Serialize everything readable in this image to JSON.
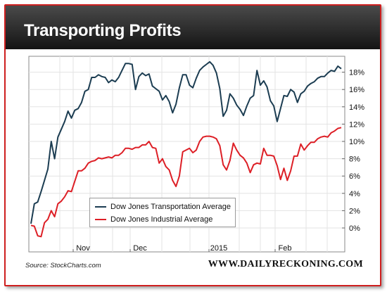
{
  "title": "Transporting Profits",
  "source": "Source: StockCharts.com",
  "site": "WWW.DAILYRECKONING.COM",
  "colors": {
    "transport": "#1c3d52",
    "industrial": "#dd1f26",
    "frame": "#cf1f1f"
  },
  "chart_data": {
    "type": "line",
    "title": "Transporting Profits",
    "xlabel": "",
    "ylabel": "",
    "x_ticks": [
      "Nov",
      "Dec",
      "2015",
      "Feb"
    ],
    "y_ticks": [
      "0%",
      "2%",
      "4%",
      "6%",
      "8%",
      "10%",
      "12%",
      "14%",
      "16%",
      "18%"
    ],
    "ylim": [
      -1.8,
      19.8
    ],
    "grid": true,
    "legend_position": "bottom-left",
    "series": [
      {
        "name": "Dow Jones Transportation Average",
        "color": "#1c3d52",
        "values": [
          0.5,
          2.8,
          3.0,
          4.2,
          5.5,
          6.8,
          10.0,
          8.0,
          10.5,
          11.4,
          12.3,
          13.5,
          12.7,
          13.6,
          13.8,
          14.5,
          15.8,
          16.0,
          17.4,
          17.4,
          17.7,
          17.5,
          17.4,
          16.8,
          17.1,
          16.9,
          17.4,
          18.2,
          19.0,
          19.0,
          18.9,
          16.0,
          17.5,
          17.9,
          17.6,
          17.8,
          16.4,
          16.1,
          15.8,
          14.8,
          15.3,
          14.6,
          13.3,
          14.3,
          16.2,
          17.7,
          17.7,
          16.5,
          16.2,
          17.3,
          18.2,
          18.6,
          18.9,
          19.2,
          18.8,
          17.9,
          16.1,
          12.9,
          13.6,
          15.5,
          15.0,
          14.2,
          13.7,
          13.0,
          14.1,
          15.0,
          15.3,
          18.2,
          16.5,
          17.0,
          16.3,
          14.7,
          14.1,
          12.3,
          13.8,
          15.3,
          15.2,
          16.0,
          15.7,
          14.5,
          15.5,
          15.8,
          16.4,
          16.7,
          16.9,
          17.3,
          17.5,
          17.5,
          17.9,
          18.2,
          18.1,
          18.7,
          18.4
        ]
      },
      {
        "name": "Dow Jones Industrial Average",
        "color": "#dd1f26",
        "values": [
          0.3,
          0.2,
          -0.9,
          -1.0,
          0.6,
          1.0,
          2.0,
          1.3,
          2.8,
          3.1,
          3.6,
          4.3,
          4.2,
          5.4,
          6.6,
          6.6,
          6.9,
          7.5,
          7.7,
          7.8,
          8.1,
          8.0,
          8.1,
          8.2,
          8.1,
          8.4,
          8.4,
          8.7,
          9.2,
          9.2,
          9.1,
          9.3,
          9.3,
          9.6,
          9.6,
          10.0,
          9.3,
          9.2,
          7.5,
          8.0,
          7.1,
          6.7,
          5.5,
          4.8,
          6.0,
          8.8,
          9.0,
          9.2,
          8.7,
          9.0,
          10.0,
          10.5,
          10.6,
          10.6,
          10.5,
          10.3,
          9.5,
          7.3,
          6.7,
          7.8,
          9.8,
          9.0,
          8.4,
          8.1,
          7.5,
          6.4,
          7.3,
          7.5,
          7.4,
          9.2,
          8.4,
          8.4,
          8.3,
          7.2,
          5.6,
          6.9,
          5.5,
          6.6,
          8.3,
          8.3,
          9.7,
          9.0,
          9.5,
          9.9,
          9.9,
          10.3,
          10.5,
          10.6,
          10.5,
          11.0,
          11.2,
          11.5,
          11.6
        ]
      }
    ]
  }
}
